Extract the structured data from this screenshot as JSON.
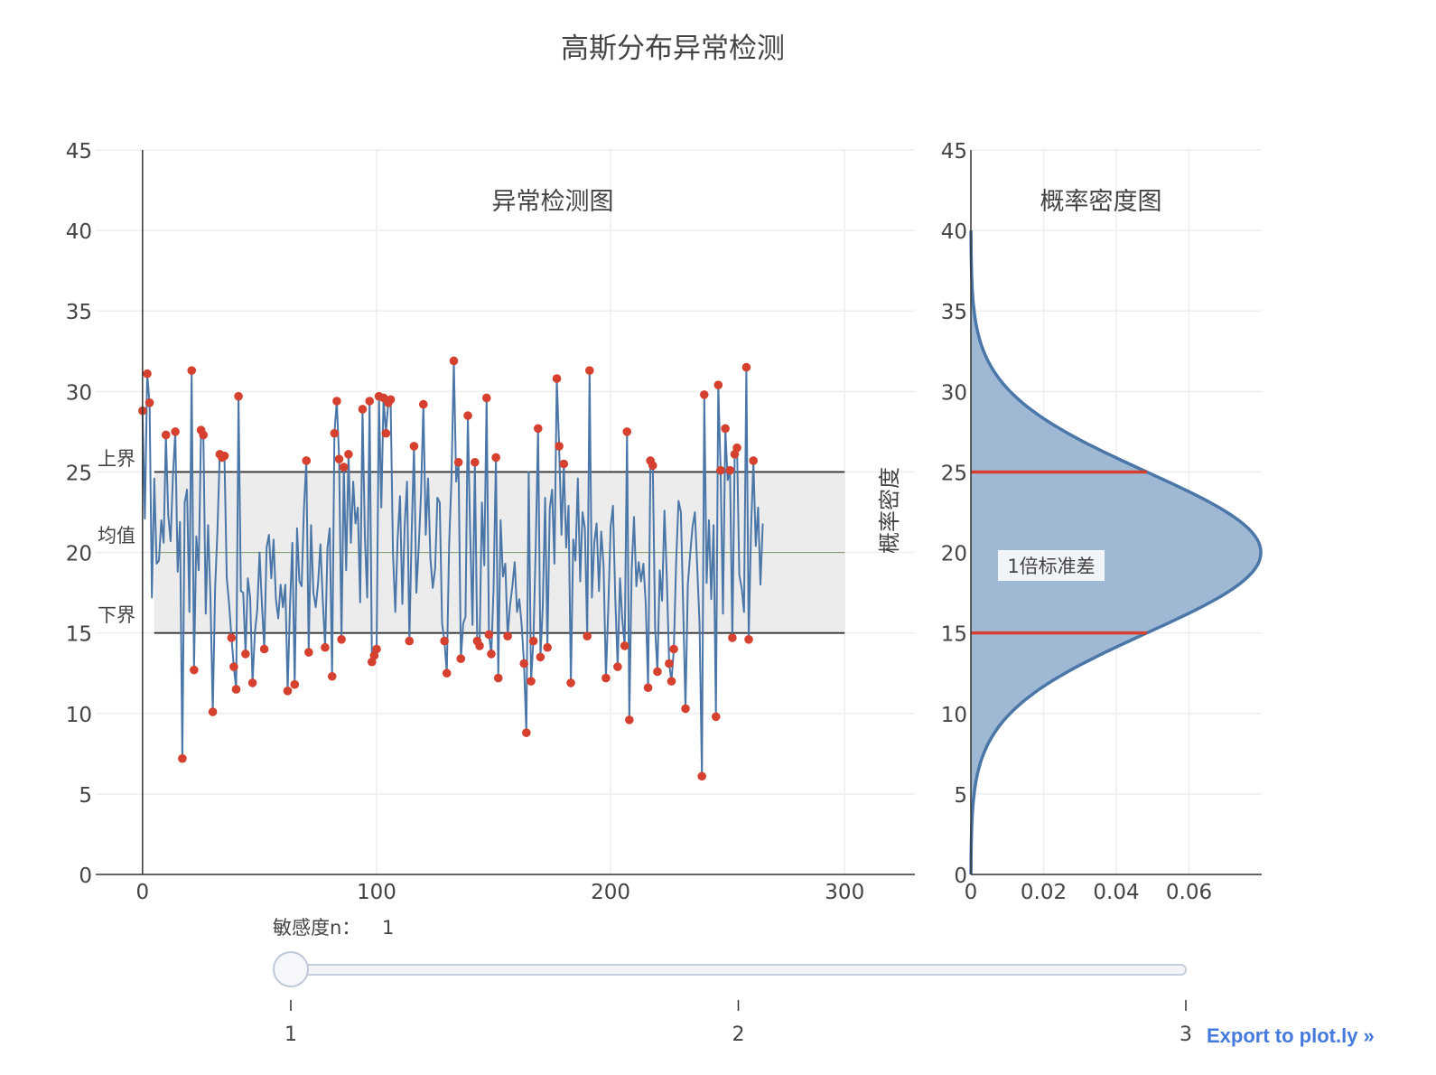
{
  "title": "高斯分布异常检测",
  "export_link": "Export to plot.ly »",
  "colors": {
    "series": "#4a76a8",
    "anomaly": "#d6402e",
    "band_fill": "#ececec",
    "boundary_line": "#333333",
    "mean_line": "#8aa06a",
    "density_fill": "#9fb8d4",
    "density_line": "#4a76a8",
    "sigma_line": "#d6402e",
    "grid": "#eeeeee",
    "axis": "#333333",
    "slider_rail": "#dfe3ec",
    "slider_handle": "#f6f7fb",
    "link": "#447adb"
  },
  "slider": {
    "label": "敏感度n：",
    "current": "1",
    "value": 1,
    "min": 1,
    "max": 3,
    "ticks": [
      "1",
      "2",
      "3"
    ]
  },
  "chart_data": [
    {
      "type": "line",
      "title": "异常检测图",
      "xlim": [
        -20,
        330
      ],
      "ylim": [
        0,
        45
      ],
      "xticks": [
        0,
        100,
        200,
        300
      ],
      "yticks": [
        0,
        5,
        10,
        15,
        20,
        25,
        30,
        35,
        40,
        45
      ],
      "grid": true,
      "bounds": {
        "upper": 25,
        "mean": 20,
        "lower": 15
      },
      "bound_labels": {
        "upper": "上界",
        "mean": "均值",
        "lower": "下界"
      },
      "band_x": [
        5,
        300
      ],
      "x_start": 0,
      "x_step": 1,
      "values": [
        28.8,
        22.1,
        31.1,
        29.3,
        17.2,
        24.6,
        19.3,
        19.5,
        22.0,
        20.6,
        27.3,
        22.3,
        20.7,
        24.8,
        27.5,
        18.8,
        21.9,
        7.2,
        23.1,
        23.9,
        16.3,
        31.3,
        12.7,
        21.0,
        18.9,
        27.6,
        27.3,
        16.2,
        21.7,
        17.3,
        10.1,
        17.8,
        21.4,
        26.1,
        25.9,
        26.0,
        18.4,
        16.8,
        14.7,
        12.9,
        11.5,
        29.7,
        17.6,
        17.5,
        13.7,
        18.4,
        17.2,
        11.9,
        15.0,
        16.4,
        20.0,
        16.8,
        14.0,
        20.3,
        21.1,
        18.4,
        20.8,
        17.1,
        15.9,
        18.0,
        16.6,
        18.0,
        11.4,
        16.7,
        20.6,
        11.8,
        21.5,
        18.2,
        17.9,
        22.8,
        25.7,
        13.8,
        21.7,
        17.5,
        16.6,
        18.1,
        20.5,
        17.0,
        14.1,
        20.3,
        21.5,
        12.3,
        27.4,
        29.4,
        25.8,
        14.6,
        25.3,
        18.9,
        26.1,
        20.6,
        24.4,
        21.8,
        22.8,
        16.9,
        28.9,
        21.0,
        17.2,
        29.4,
        13.2,
        13.6,
        14.0,
        29.7,
        22.8,
        29.6,
        27.4,
        29.3,
        29.5,
        20.0,
        16.3,
        20.9,
        23.5,
        16.8,
        21.7,
        24.4,
        14.5,
        21.2,
        26.6,
        17.5,
        20.3,
        23.7,
        29.2,
        21.1,
        24.6,
        19.6,
        17.8,
        19.0,
        23.4,
        23.1,
        15.6,
        14.5,
        12.5,
        20.5,
        24.6,
        31.9,
        24.4,
        25.6,
        13.4,
        15.6,
        16.0,
        28.5,
        21.2,
        15.5,
        25.6,
        14.5,
        14.2,
        23.1,
        19.2,
        29.6,
        14.9,
        13.7,
        17.8,
        25.9,
        12.2,
        22.0,
        18.5,
        19.3,
        14.8,
        16.7,
        17.9,
        19.4,
        16.3,
        17.1,
        15.5,
        13.1,
        8.8,
        25.0,
        12.0,
        14.5,
        20.4,
        27.7,
        13.5,
        16.7,
        23.4,
        14.1,
        22.7,
        23.9,
        19.3,
        30.8,
        26.6,
        21.1,
        25.5,
        20.3,
        22.9,
        11.9,
        20.8,
        19.5,
        24.6,
        18.2,
        22.5,
        21.5,
        14.8,
        31.3,
        17.2,
        20.6,
        21.8,
        17.6,
        21.3,
        19.2,
        12.2,
        16.5,
        21.6,
        22.9,
        17.1,
        12.9,
        18.4,
        15.8,
        14.2,
        27.5,
        9.6,
        18.9,
        22.2,
        17.9,
        19.4,
        18.2,
        19.3,
        16.8,
        11.6,
        25.7,
        25.4,
        15.3,
        12.6,
        18.9,
        17.0,
        22.6,
        18.5,
        13.1,
        12.0,
        14.0,
        19.5,
        23.2,
        22.5,
        16.7,
        10.3,
        18.0,
        19.9,
        21.6,
        22.5,
        19.1,
        15.5,
        6.1,
        29.8,
        18.1,
        22.0,
        17.1,
        21.7,
        9.8,
        30.4,
        25.1,
        16.2,
        27.7,
        24.5,
        25.1,
        14.7,
        26.1,
        26.5,
        18.6,
        17.8,
        16.3,
        31.5,
        14.6,
        21.4,
        25.7,
        20.4,
        22.8,
        18.0,
        21.8
      ]
    },
    {
      "type": "area",
      "title": "概率密度图",
      "ylabel": "概率密度",
      "xlim": [
        0,
        0.08
      ],
      "ylim": [
        0,
        45
      ],
      "xticks": [
        "0",
        "0.02",
        "0.04",
        "0.06"
      ],
      "xtick_values": [
        0,
        0.02,
        0.04,
        0.06
      ],
      "yticks": [
        0,
        5,
        10,
        15,
        20,
        25,
        30,
        35,
        40,
        45
      ],
      "grid": true,
      "distribution": {
        "mean": 20,
        "std": 5,
        "y_range": [
          0,
          40
        ]
      },
      "sigma_lines": {
        "values": [
          25,
          15
        ],
        "label": "1倍标准差"
      }
    }
  ]
}
